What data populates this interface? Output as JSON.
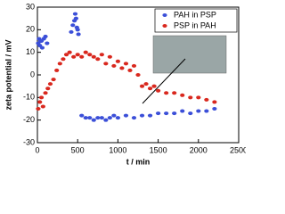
{
  "chart_data": {
    "type": "scatter",
    "xlabel": "t / min",
    "ylabel": "zeta potential / mV",
    "xlim": [
      0,
      2500
    ],
    "xticks": [
      0,
      500,
      1000,
      1500,
      2000,
      2500
    ],
    "ylim": [
      -30,
      30
    ],
    "yticks": [
      -30,
      -20,
      -10,
      0,
      10,
      20,
      30
    ],
    "legend": "upper right",
    "series": [
      {
        "name": "PAH in PSP",
        "color": "#3b4fd8",
        "x": [
          10,
          20,
          30,
          40,
          50,
          60,
          80,
          100,
          120,
          420,
          440,
          460,
          470,
          480,
          490,
          500,
          510,
          550,
          600,
          650,
          700,
          750,
          800,
          850,
          900,
          950,
          1000,
          1100,
          1200,
          1300,
          1400,
          1500,
          1600,
          1700,
          1800,
          1900,
          2000,
          2100,
          2200
        ],
        "values": [
          14,
          16,
          13,
          15,
          15,
          12,
          16,
          17,
          14,
          19,
          22,
          24,
          27,
          25,
          21,
          20,
          18,
          -18,
          -19,
          -19,
          -20,
          -19,
          -19,
          -20,
          -19,
          -18,
          -19,
          -18,
          -19,
          -18,
          -18,
          -17,
          -17,
          -17,
          -16,
          -17,
          -16,
          -16,
          -15
        ]
      },
      {
        "name": "PSP in PAH",
        "color": "#d9281e",
        "x": [
          10,
          30,
          50,
          70,
          100,
          130,
          160,
          200,
          240,
          280,
          320,
          360,
          400,
          450,
          500,
          550,
          600,
          650,
          700,
          750,
          800,
          850,
          900,
          950,
          1000,
          1050,
          1100,
          1150,
          1200,
          1250,
          1300,
          1350,
          1400,
          1450,
          1500,
          1600,
          1700,
          1800,
          1900,
          2000,
          2100,
          2200
        ],
        "values": [
          -15,
          -12,
          -10,
          -14,
          -8,
          -6,
          -4,
          -2,
          2,
          5,
          7,
          9,
          10,
          8,
          9,
          8,
          10,
          9,
          8,
          7,
          9,
          5,
          8,
          4,
          6,
          3,
          5,
          2,
          4,
          0,
          -5,
          -4,
          -6,
          -5,
          -7,
          -8,
          -8,
          -9,
          -10,
          -10,
          -11,
          -12
        ]
      }
    ]
  }
}
